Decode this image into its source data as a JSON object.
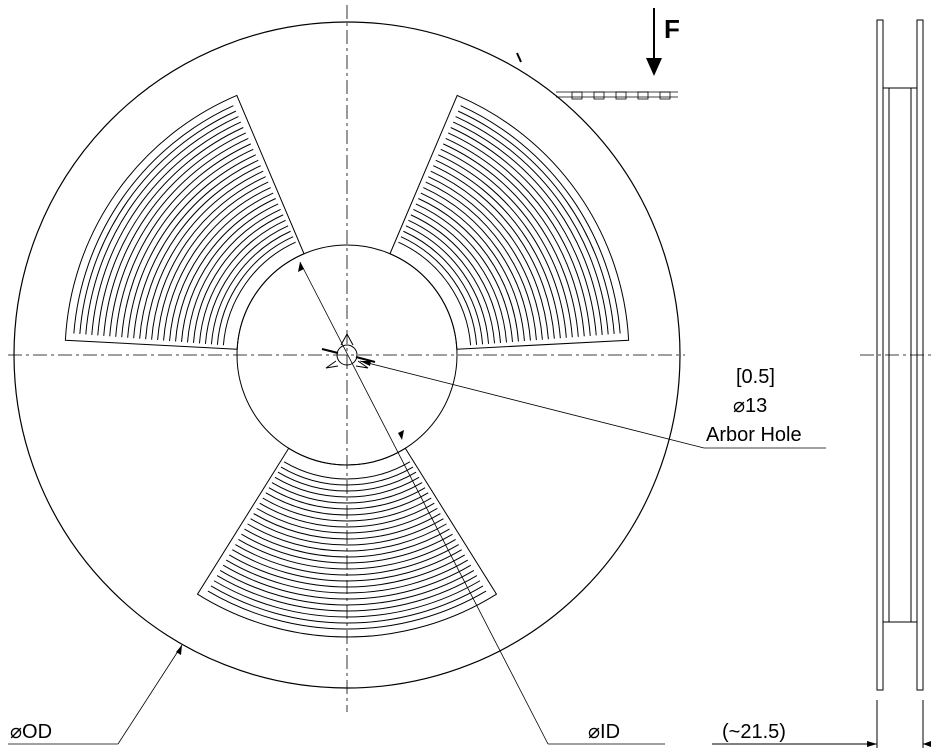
{
  "labels": {
    "force": "F",
    "tolerance": "[0.5]",
    "arbor_diameter": "⌀13",
    "arbor_hole": "Arbor Hole",
    "outer_diameter": "⌀OD",
    "inner_diameter": "⌀ID",
    "width": "(~21.5)"
  },
  "colors": {
    "line": "#000000",
    "background": "#ffffff"
  }
}
